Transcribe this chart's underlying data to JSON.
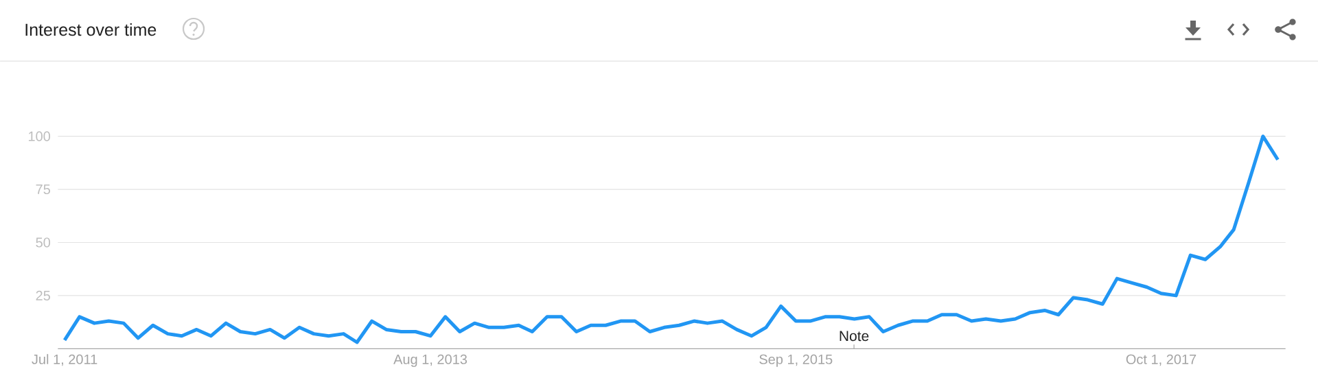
{
  "chart_data": {
    "type": "line",
    "title": "Interest over time",
    "x": [
      "2011-07",
      "2011-08",
      "2011-09",
      "2011-10",
      "2011-11",
      "2011-12",
      "2012-01",
      "2012-02",
      "2012-03",
      "2012-04",
      "2012-05",
      "2012-06",
      "2012-07",
      "2012-08",
      "2012-09",
      "2012-10",
      "2012-11",
      "2012-12",
      "2013-01",
      "2013-02",
      "2013-03",
      "2013-04",
      "2013-05",
      "2013-06",
      "2013-07",
      "2013-08",
      "2013-09",
      "2013-10",
      "2013-11",
      "2013-12",
      "2014-01",
      "2014-02",
      "2014-03",
      "2014-04",
      "2014-05",
      "2014-06",
      "2014-07",
      "2014-08",
      "2014-09",
      "2014-10",
      "2014-11",
      "2014-12",
      "2015-01",
      "2015-02",
      "2015-03",
      "2015-04",
      "2015-05",
      "2015-06",
      "2015-07",
      "2015-08",
      "2015-09",
      "2015-10",
      "2015-11",
      "2015-12",
      "2016-01",
      "2016-02",
      "2016-03",
      "2016-04",
      "2016-05",
      "2016-06",
      "2016-07",
      "2016-08",
      "2016-09",
      "2016-10",
      "2016-11",
      "2016-12",
      "2017-01",
      "2017-02",
      "2017-03",
      "2017-04",
      "2017-05",
      "2017-06",
      "2017-07",
      "2017-08",
      "2017-09",
      "2017-10",
      "2017-11",
      "2017-12",
      "2018-01",
      "2018-02",
      "2018-03",
      "2018-04",
      "2018-05",
      "2018-06"
    ],
    "series": [
      {
        "color": "#2196f3",
        "values": [
          4,
          15,
          12,
          13,
          12,
          5,
          11,
          7,
          6,
          9,
          6,
          12,
          8,
          7,
          9,
          5,
          10,
          7,
          6,
          7,
          3,
          13,
          9,
          8,
          8,
          6,
          15,
          8,
          12,
          10,
          10,
          11,
          8,
          15,
          15,
          8,
          11,
          11,
          13,
          13,
          8,
          10,
          11,
          13,
          12,
          13,
          9,
          6,
          10,
          20,
          13,
          13,
          15,
          15,
          14,
          15,
          8,
          11,
          13,
          13,
          16,
          16,
          13,
          14,
          13,
          14,
          17,
          18,
          16,
          24,
          23,
          21,
          33,
          31,
          29,
          26,
          25,
          44,
          42,
          48,
          56,
          78,
          100,
          89
        ]
      }
    ],
    "xlim": [
      "2011-06-17",
      "2018-06-17"
    ],
    "xticks": [
      {
        "value": "2011-07-01",
        "label": "Jul 1, 2011"
      },
      {
        "value": "2013-08-01",
        "label": "Aug 1, 2013"
      },
      {
        "value": "2015-09-01",
        "label": "Sep 1, 2015"
      },
      {
        "value": "2017-10-01",
        "label": "Oct 1, 2017"
      }
    ],
    "ylim": [
      0,
      100
    ],
    "yticks": [
      25,
      50,
      75,
      100
    ],
    "grid": "y",
    "line_style": "solid",
    "annotations": [
      "Note"
    ]
  }
}
